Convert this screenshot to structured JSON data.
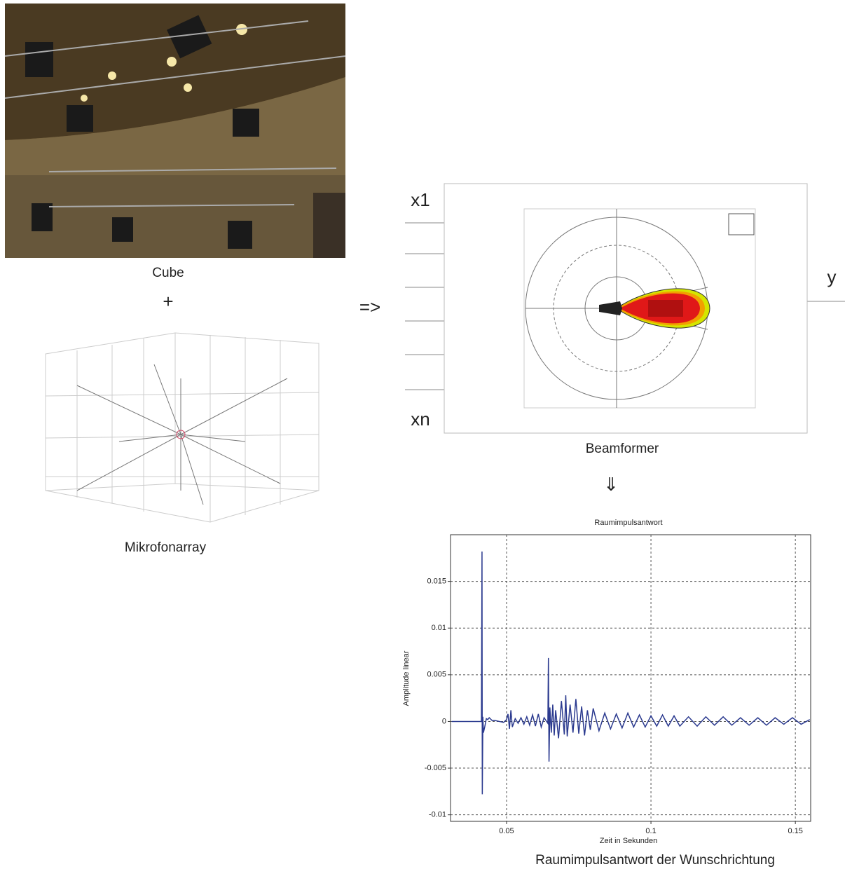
{
  "cube": {
    "label": "Cube"
  },
  "plus": "+",
  "array": {
    "label": "Mikrofonarray"
  },
  "arrow": "=>",
  "beamformer": {
    "inputs": [
      "x1",
      "xn"
    ],
    "output": "y",
    "label": "Beamformer"
  },
  "down_arrow": "⇓",
  "caption": "Raumimpulsantwort der Wunschrichtung",
  "chart_data": {
    "type": "line",
    "title": "Raumimpulsantwort",
    "x_label": "Zeit in Sekunden",
    "y_label": "Amplitude linear",
    "xlim": [
      0.0306,
      0.1553
    ],
    "ylim": [
      -0.0107,
      0.02
    ],
    "xticks": [
      0.05,
      0.1,
      0.15
    ],
    "yticks": [
      0.015,
      0.01,
      0.005,
      0,
      -0.005,
      -0.01
    ],
    "grid": true,
    "x": [
      0.031,
      0.038,
      0.0413,
      0.0415,
      0.0416,
      0.0418,
      0.042,
      0.0425,
      0.043,
      0.0435,
      0.044,
      0.045,
      0.046,
      0.0475,
      0.049,
      0.05,
      0.0505,
      0.051,
      0.0515,
      0.052,
      0.053,
      0.054,
      0.055,
      0.056,
      0.057,
      0.058,
      0.059,
      0.06,
      0.061,
      0.062,
      0.063,
      0.0643,
      0.0645,
      0.0647,
      0.065,
      0.0655,
      0.066,
      0.0665,
      0.067,
      0.068,
      0.069,
      0.07,
      0.0705,
      0.071,
      0.072,
      0.073,
      0.074,
      0.075,
      0.076,
      0.077,
      0.078,
      0.079,
      0.08,
      0.082,
      0.084,
      0.086,
      0.088,
      0.09,
      0.092,
      0.094,
      0.096,
      0.098,
      0.1,
      0.102,
      0.104,
      0.106,
      0.108,
      0.11,
      0.113,
      0.116,
      0.119,
      0.122,
      0.125,
      0.128,
      0.131,
      0.134,
      0.137,
      0.14,
      0.143,
      0.146,
      0.149,
      0.152,
      0.155
    ],
    "series": [
      {
        "color": "#2b3a8f",
        "values": [
          0,
          0,
          0,
          0.0182,
          -0.0078,
          0.0005,
          -0.0012,
          -0.0005,
          0.0003,
          0.0002,
          0.0004,
          0.0001,
          0.0001,
          0,
          -0.0001,
          0.0002,
          0.0008,
          -0.0008,
          0.0012,
          -0.0006,
          0.0003,
          -0.0002,
          0.0004,
          -0.0003,
          0.0005,
          -0.0004,
          0.0007,
          -0.0005,
          0.0008,
          -0.0006,
          0.0004,
          -0.0002,
          0.0068,
          -0.0043,
          0.0015,
          -0.0012,
          0.0018,
          -0.0015,
          0.0012,
          -0.0018,
          0.0022,
          -0.0014,
          0.0028,
          -0.0016,
          0.0018,
          -0.0012,
          0.0024,
          -0.0013,
          0.0016,
          -0.0015,
          0.0012,
          -0.0009,
          0.0014,
          -0.001,
          0.0009,
          -0.0008,
          0.0008,
          -0.0007,
          0.0009,
          -0.0006,
          0.0007,
          -0.0006,
          0.0006,
          -0.0005,
          0.0007,
          -0.0005,
          0.0006,
          -0.0005,
          0.0005,
          -0.0005,
          0.0005,
          -0.0004,
          0.0005,
          -0.0004,
          0.0004,
          -0.0004,
          0.0004,
          -0.0004,
          0.0004,
          -0.0003,
          0.0004,
          -0.0003,
          0.0002
        ]
      }
    ]
  }
}
